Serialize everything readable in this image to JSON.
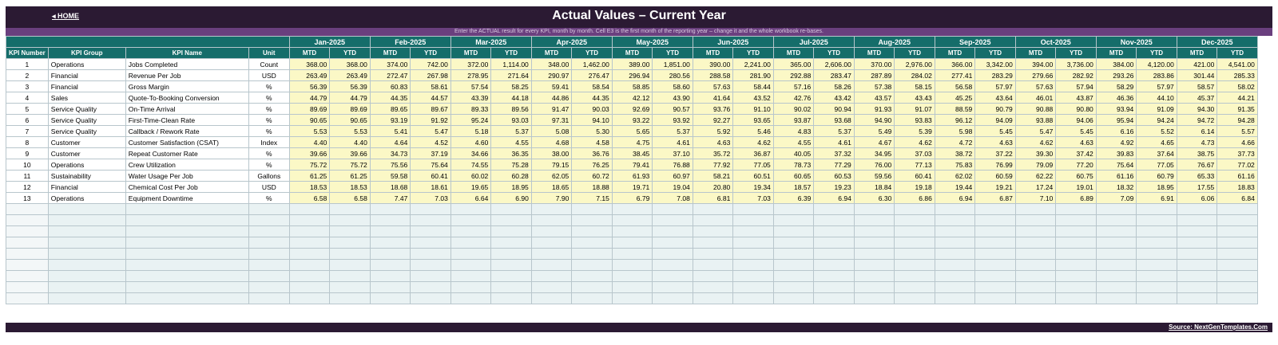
{
  "header": {
    "home_label": "◂ HOME",
    "title": "Actual Values  –  Current Year",
    "subtitle": "Enter the ACTUAL result for every KPI, month by month. Cell E3 is the first month of the reporting year – change it and the whole workbook re-bases."
  },
  "table": {
    "columns": {
      "kpi_number": "KPI Number",
      "kpi_group": "KPI Group",
      "kpi_name": "KPI Name",
      "unit": "Unit",
      "mtd": "MTD",
      "ytd": "YTD"
    },
    "months": [
      "Jan-2025",
      "Feb-2025",
      "Mar-2025",
      "Apr-2025",
      "May-2025",
      "Jun-2025",
      "Jul-2025",
      "Aug-2025",
      "Sep-2025",
      "Oct-2025",
      "Nov-2025",
      "Dec-2025"
    ],
    "rows": [
      {
        "num": "1",
        "group": "Operations",
        "name": "Jobs Completed",
        "unit": "Count",
        "values": [
          "368.00",
          "368.00",
          "374.00",
          "742.00",
          "372.00",
          "1,114.00",
          "348.00",
          "1,462.00",
          "389.00",
          "1,851.00",
          "390.00",
          "2,241.00",
          "365.00",
          "2,606.00",
          "370.00",
          "2,976.00",
          "366.00",
          "3,342.00",
          "394.00",
          "3,736.00",
          "384.00",
          "4,120.00",
          "421.00",
          "4,541.00"
        ]
      },
      {
        "num": "2",
        "group": "Financial",
        "name": "Revenue Per Job",
        "unit": "USD",
        "values": [
          "263.49",
          "263.49",
          "272.47",
          "267.98",
          "278.95",
          "271.64",
          "290.97",
          "276.47",
          "296.94",
          "280.56",
          "288.58",
          "281.90",
          "292.88",
          "283.47",
          "287.89",
          "284.02",
          "277.41",
          "283.29",
          "279.66",
          "282.92",
          "293.26",
          "283.86",
          "301.44",
          "285.33"
        ]
      },
      {
        "num": "3",
        "group": "Financial",
        "name": "Gross Margin",
        "unit": "%",
        "values": [
          "56.39",
          "56.39",
          "60.83",
          "58.61",
          "57.54",
          "58.25",
          "59.41",
          "58.54",
          "58.85",
          "58.60",
          "57.63",
          "58.44",
          "57.16",
          "58.26",
          "57.38",
          "58.15",
          "56.58",
          "57.97",
          "57.63",
          "57.94",
          "58.29",
          "57.97",
          "58.57",
          "58.02"
        ]
      },
      {
        "num": "4",
        "group": "Sales",
        "name": "Quote-To-Booking Conversion",
        "unit": "%",
        "values": [
          "44.79",
          "44.79",
          "44.35",
          "44.57",
          "43.39",
          "44.18",
          "44.86",
          "44.35",
          "42.12",
          "43.90",
          "41.64",
          "43.52",
          "42.76",
          "43.42",
          "43.57",
          "43.43",
          "45.25",
          "43.64",
          "46.01",
          "43.87",
          "46.36",
          "44.10",
          "45.37",
          "44.21"
        ]
      },
      {
        "num": "5",
        "group": "Service Quality",
        "name": "On-Time Arrival",
        "unit": "%",
        "values": [
          "89.69",
          "89.69",
          "89.65",
          "89.67",
          "89.33",
          "89.56",
          "91.47",
          "90.03",
          "92.69",
          "90.57",
          "93.76",
          "91.10",
          "90.02",
          "90.94",
          "91.93",
          "91.07",
          "88.59",
          "90.79",
          "90.88",
          "90.80",
          "93.94",
          "91.09",
          "94.30",
          "91.35"
        ]
      },
      {
        "num": "6",
        "group": "Service Quality",
        "name": "First-Time-Clean Rate",
        "unit": "%",
        "values": [
          "90.65",
          "90.65",
          "93.19",
          "91.92",
          "95.24",
          "93.03",
          "97.31",
          "94.10",
          "93.22",
          "93.92",
          "92.27",
          "93.65",
          "93.87",
          "93.68",
          "94.90",
          "93.83",
          "96.12",
          "94.09",
          "93.88",
          "94.06",
          "95.94",
          "94.24",
          "94.72",
          "94.28"
        ]
      },
      {
        "num": "7",
        "group": "Service Quality",
        "name": "Callback / Rework Rate",
        "unit": "%",
        "values": [
          "5.53",
          "5.53",
          "5.41",
          "5.47",
          "5.18",
          "5.37",
          "5.08",
          "5.30",
          "5.65",
          "5.37",
          "5.92",
          "5.46",
          "4.83",
          "5.37",
          "5.49",
          "5.39",
          "5.98",
          "5.45",
          "5.47",
          "5.45",
          "6.16",
          "5.52",
          "6.14",
          "5.57"
        ]
      },
      {
        "num": "8",
        "group": "Customer",
        "name": "Customer Satisfaction (CSAT)",
        "unit": "Index",
        "values": [
          "4.40",
          "4.40",
          "4.64",
          "4.52",
          "4.60",
          "4.55",
          "4.68",
          "4.58",
          "4.75",
          "4.61",
          "4.63",
          "4.62",
          "4.55",
          "4.61",
          "4.67",
          "4.62",
          "4.72",
          "4.63",
          "4.62",
          "4.63",
          "4.92",
          "4.65",
          "4.73",
          "4.66"
        ]
      },
      {
        "num": "9",
        "group": "Customer",
        "name": "Repeat Customer Rate",
        "unit": "%",
        "values": [
          "39.66",
          "39.66",
          "34.73",
          "37.19",
          "34.66",
          "36.35",
          "38.00",
          "36.76",
          "38.45",
          "37.10",
          "35.72",
          "36.87",
          "40.05",
          "37.32",
          "34.95",
          "37.03",
          "38.72",
          "37.22",
          "39.30",
          "37.42",
          "39.83",
          "37.64",
          "38.75",
          "37.73"
        ]
      },
      {
        "num": "10",
        "group": "Operations",
        "name": "Crew Utilization",
        "unit": "%",
        "values": [
          "75.72",
          "75.72",
          "75.56",
          "75.64",
          "74.55",
          "75.28",
          "79.15",
          "76.25",
          "79.41",
          "76.88",
          "77.92",
          "77.05",
          "78.73",
          "77.29",
          "76.00",
          "77.13",
          "75.83",
          "76.99",
          "79.09",
          "77.20",
          "75.64",
          "77.05",
          "76.67",
          "77.02"
        ]
      },
      {
        "num": "11",
        "group": "Sustainability",
        "name": "Water Usage Per Job",
        "unit": "Gallons",
        "values": [
          "61.25",
          "61.25",
          "59.58",
          "60.41",
          "60.02",
          "60.28",
          "62.05",
          "60.72",
          "61.93",
          "60.97",
          "58.21",
          "60.51",
          "60.65",
          "60.53",
          "59.56",
          "60.41",
          "62.02",
          "60.59",
          "62.22",
          "60.75",
          "61.16",
          "60.79",
          "65.33",
          "61.16"
        ]
      },
      {
        "num": "12",
        "group": "Financial",
        "name": "Chemical Cost Per Job",
        "unit": "USD",
        "values": [
          "18.53",
          "18.53",
          "18.68",
          "18.61",
          "19.65",
          "18.95",
          "18.65",
          "18.88",
          "19.71",
          "19.04",
          "20.80",
          "19.34",
          "18.57",
          "19.23",
          "18.84",
          "19.18",
          "19.44",
          "19.21",
          "17.24",
          "19.01",
          "18.32",
          "18.95",
          "17.55",
          "18.83"
        ]
      },
      {
        "num": "13",
        "group": "Operations",
        "name": "Equipment Downtime",
        "unit": "%",
        "values": [
          "6.58",
          "6.58",
          "7.47",
          "7.03",
          "6.64",
          "6.90",
          "7.90",
          "7.15",
          "6.79",
          "7.08",
          "6.81",
          "7.03",
          "6.39",
          "6.94",
          "6.30",
          "6.86",
          "6.94",
          "6.87",
          "7.10",
          "6.89",
          "7.09",
          "6.91",
          "6.06",
          "6.84"
        ]
      }
    ]
  },
  "footer": {
    "source_label": "Source: NextGenTemplates.Com"
  },
  "colors": {
    "banner": "#2b1a33",
    "subtitle_bar": "#6a3f7e",
    "header_teal": "#156d6a",
    "value_cell": "#fbf8c6",
    "empty_row": "#e9f2f3"
  }
}
